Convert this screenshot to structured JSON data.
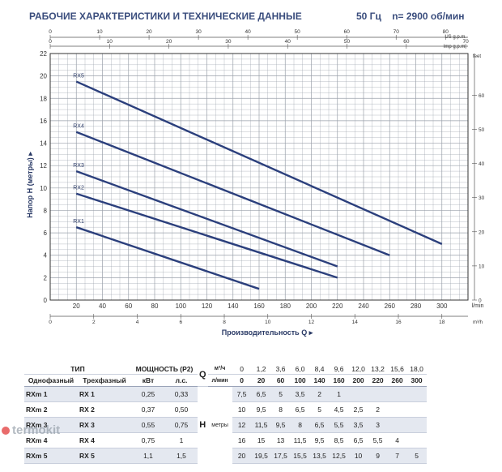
{
  "header": {
    "title": "РАБОЧИЕ ХАРАКТЕРИСТИКИ И ТЕХНИЧЕСКИЕ ДАННЫЕ",
    "right": "50 Гц    n= 2900 об/мин"
  },
  "chart_data": {
    "type": "line",
    "xlabel": "Производительность Q ▸",
    "ylabel": "Напор H (метры) ▸",
    "xlim": [
      0,
      320
    ],
    "ylim": [
      0,
      22
    ],
    "x_unit": "l/min",
    "y_unit_right": "feet",
    "bottom_unit": "m³/h",
    "top1_unit": "US g.p.m.",
    "top2_unit": "Imp g.p.m.",
    "x_ticks": [
      "0",
      "20",
      "40",
      "60",
      "80",
      "100",
      "120",
      "140",
      "160",
      "180",
      "200",
      "220",
      "240",
      "260",
      "280",
      "300"
    ],
    "y_ticks": [
      "0",
      "2",
      "4",
      "6",
      "8",
      "10",
      "12",
      "14",
      "16",
      "18",
      "20",
      "22"
    ],
    "right_ticks": [
      "0",
      "10",
      "20",
      "30",
      "40",
      "50",
      "60"
    ],
    "bottom_ticks": [
      "0",
      "2",
      "4",
      "6",
      "8",
      "10",
      "12",
      "14",
      "16",
      "18"
    ],
    "top1_ticks": [
      "0",
      "10",
      "20",
      "30",
      "40",
      "50",
      "60",
      "70",
      "80"
    ],
    "top2_ticks": [
      "0",
      "10",
      "20",
      "30",
      "40",
      "50",
      "60",
      "70"
    ],
    "series": [
      {
        "name": "RX1",
        "x": [
          20,
          160
        ],
        "y": [
          6.5,
          1
        ]
      },
      {
        "name": "RX2",
        "x": [
          20,
          220
        ],
        "y": [
          9.5,
          2
        ]
      },
      {
        "name": "RX3",
        "x": [
          20,
          220
        ],
        "y": [
          11.5,
          3
        ]
      },
      {
        "name": "RX4",
        "x": [
          20,
          260
        ],
        "y": [
          15,
          4
        ]
      },
      {
        "name": "RX5",
        "x": [
          20,
          300
        ],
        "y": [
          19.5,
          5
        ]
      }
    ],
    "colors": {
      "line": "#2b3f7c",
      "grid": "#9aa0aa",
      "axis": "#555555"
    }
  },
  "table": {
    "h_tip": "ТИП",
    "h_power": "МОЩНОСТЬ (P2)",
    "h_single": "Однофазный",
    "h_three": "Трехфазный",
    "h_kw": "кВт",
    "h_hp": "л.с.",
    "q": "Q",
    "q_unit1": "м³/ч",
    "q_unit2": "л/мин",
    "h_label": "H",
    "h_unit": "метры",
    "q_m3h": [
      "0",
      "1,2",
      "3,6",
      "6,0",
      "8,4",
      "9,6",
      "12,0",
      "13,2",
      "15,6",
      "18,0"
    ],
    "q_lmin": [
      "0",
      "20",
      "60",
      "100",
      "140",
      "160",
      "200",
      "220",
      "260",
      "300"
    ],
    "rows": [
      {
        "single": "RXm 1",
        "three": "RX 1",
        "kw": "0,25",
        "hp": "0,33",
        "h": [
          "7,5",
          "6,5",
          "5",
          "3,5",
          "2",
          "1",
          "",
          "",
          "",
          ""
        ]
      },
      {
        "single": "RXm 2",
        "three": "RX 2",
        "kw": "0,37",
        "hp": "0,50",
        "h": [
          "10",
          "9,5",
          "8",
          "6,5",
          "5",
          "4,5",
          "2,5",
          "2",
          "",
          ""
        ]
      },
      {
        "single": "RXm 3",
        "three": "RX 3",
        "kw": "0,55",
        "hp": "0,75",
        "h": [
          "12",
          "11,5",
          "9,5",
          "8",
          "6,5",
          "5,5",
          "3,5",
          "3",
          "",
          ""
        ]
      },
      {
        "single": "RXm 4",
        "three": "RX 4",
        "kw": "0,75",
        "hp": "1",
        "h": [
          "16",
          "15",
          "13",
          "11,5",
          "9,5",
          "8,5",
          "6,5",
          "5,5",
          "4",
          ""
        ]
      },
      {
        "single": "RXm 5",
        "three": "RX 5",
        "kw": "1,1",
        "hp": "1,5",
        "h": [
          "20",
          "19,5",
          "17,5",
          "15,5",
          "13,5",
          "12,5",
          "10",
          "9",
          "7",
          "5"
        ]
      }
    ]
  },
  "watermark": "termokit"
}
